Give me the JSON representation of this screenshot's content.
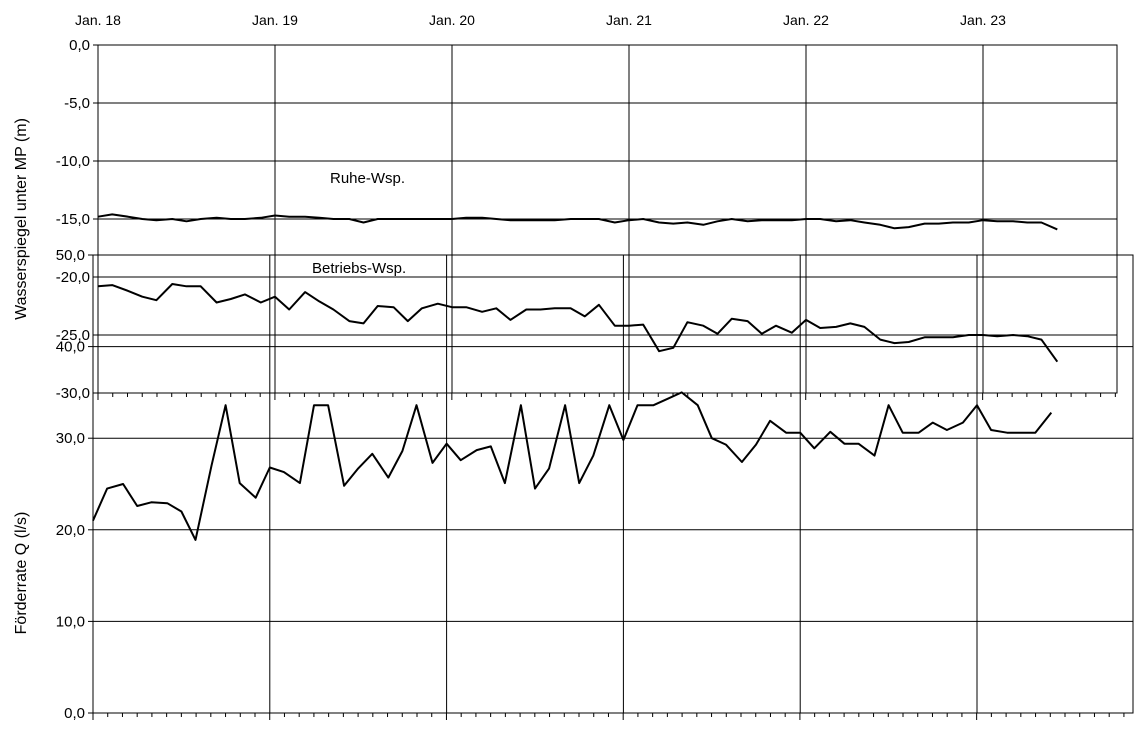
{
  "chart_data": [
    {
      "type": "line",
      "xlabel": "",
      "ylabel": "Wasserspiegel unter MP (m)",
      "x_tick_labels": [
        "Jan. 18",
        "Jan. 19",
        "Jan. 20",
        "Jan. 21",
        "Jan. 22",
        "Jan. 23"
      ],
      "ylim": [
        -30,
        0
      ],
      "y_tick_labels": [
        "0,0",
        "-5,0",
        "-10,0",
        "-15,0",
        "-20,0",
        "-25,0",
        "-30,0"
      ],
      "grid": true,
      "annotations": [
        "Ruhe-Wsp.",
        "Betriebs-Wsp."
      ],
      "series": [
        {
          "label": "Ruhe-Wsp.",
          "x": [
            0.0,
            0.08,
            0.17,
            0.25,
            0.33,
            0.42,
            0.5,
            0.58,
            0.67,
            0.75,
            0.83,
            0.92,
            1.0,
            1.08,
            1.17,
            1.25,
            1.33,
            1.42,
            1.5,
            1.58,
            1.67,
            1.75,
            1.83,
            1.92,
            2.0,
            2.08,
            2.17,
            2.25,
            2.33,
            2.42,
            2.5,
            2.58,
            2.67,
            2.75,
            2.83,
            2.92,
            3.0,
            3.08,
            3.17,
            3.25,
            3.33,
            3.42,
            3.5,
            3.58,
            3.67,
            3.75,
            3.83,
            3.92,
            4.0,
            4.08,
            4.17,
            4.25,
            4.33,
            4.42,
            4.5,
            4.58,
            4.67,
            4.75,
            4.83,
            4.92,
            5.0,
            5.08,
            5.17,
            5.25,
            5.33,
            5.42
          ],
          "values": [
            -14.8,
            -14.6,
            -14.8,
            -15.0,
            -15.1,
            -15.0,
            -15.2,
            -15.0,
            -14.9,
            -15.0,
            -15.0,
            -14.9,
            -14.7,
            -14.8,
            -14.8,
            -14.9,
            -15.0,
            -15.0,
            -15.3,
            -15.0,
            -15.0,
            -15.0,
            -15.0,
            -15.0,
            -15.0,
            -14.9,
            -14.9,
            -15.0,
            -15.1,
            -15.1,
            -15.1,
            -15.1,
            -15.0,
            -15.0,
            -15.0,
            -15.3,
            -15.1,
            -15.0,
            -15.3,
            -15.4,
            -15.3,
            -15.5,
            -15.2,
            -15.0,
            -15.2,
            -15.1,
            -15.1,
            -15.1,
            -15.0,
            -15.0,
            -15.2,
            -15.1,
            -15.3,
            -15.5,
            -15.8,
            -15.7,
            -15.4,
            -15.4,
            -15.3,
            -15.3,
            -15.1,
            -15.2,
            -15.2,
            -15.3,
            -15.3,
            -15.9
          ]
        },
        {
          "label": "Betriebs-Wsp.",
          "x": [
            0.0,
            0.08,
            0.17,
            0.25,
            0.33,
            0.42,
            0.5,
            0.58,
            0.67,
            0.75,
            0.83,
            0.92,
            1.0,
            1.08,
            1.17,
            1.25,
            1.33,
            1.42,
            1.5,
            1.58,
            1.67,
            1.75,
            1.83,
            1.92,
            2.0,
            2.08,
            2.17,
            2.25,
            2.33,
            2.42,
            2.5,
            2.58,
            2.67,
            2.75,
            2.83,
            2.92,
            3.0,
            3.08,
            3.17,
            3.25,
            3.33,
            3.42,
            3.5,
            3.58,
            3.67,
            3.75,
            3.83,
            3.92,
            4.0,
            4.08,
            4.17,
            4.25,
            4.33,
            4.42,
            4.5,
            4.58,
            4.67,
            4.75,
            4.83,
            4.92,
            5.0,
            5.08,
            5.17,
            5.25,
            5.33,
            5.42
          ],
          "values": [
            -20.8,
            -20.7,
            -21.2,
            -21.7,
            -22.0,
            -20.6,
            -20.8,
            -20.8,
            -22.2,
            -21.9,
            -21.5,
            -22.2,
            -21.7,
            -22.8,
            -21.3,
            -22.1,
            -22.8,
            -23.8,
            -24.0,
            -22.5,
            -22.6,
            -23.8,
            -22.7,
            -22.3,
            -22.6,
            -22.6,
            -23.0,
            -22.7,
            -23.7,
            -22.8,
            -22.8,
            -22.7,
            -22.7,
            -23.4,
            -22.4,
            -24.2,
            -24.2,
            -24.1,
            -26.4,
            -26.1,
            -23.9,
            -24.2,
            -24.9,
            -23.6,
            -23.8,
            -24.9,
            -24.2,
            -24.8,
            -23.7,
            -24.4,
            -24.3,
            -24.0,
            -24.3,
            -25.4,
            -25.7,
            -25.6,
            -25.2,
            -25.2,
            -25.2,
            -25.0,
            -25.0,
            -25.1,
            -25.0,
            -25.1,
            -25.4,
            -27.3
          ]
        }
      ]
    },
    {
      "type": "line",
      "xlabel": "",
      "ylabel": "Förderrate Q (l/s)",
      "x_tick_labels": [
        "Jan. 18",
        "Jan. 19",
        "Jan. 20",
        "Jan. 21",
        "Jan. 22",
        "Jan. 23"
      ],
      "ylim": [
        0,
        50
      ],
      "y_tick_labels": [
        "50,0",
        "40,0",
        "30,0",
        "20,0",
        "10,0",
        "0,0"
      ],
      "grid": true,
      "series": [
        {
          "x": [
            0.0,
            0.08,
            0.17,
            0.25,
            0.33,
            0.42,
            0.5,
            0.58,
            0.67,
            0.75,
            0.83,
            0.92,
            1.0,
            1.08,
            1.17,
            1.25,
            1.33,
            1.42,
            1.5,
            1.58,
            1.67,
            1.75,
            1.83,
            1.92,
            2.0,
            2.08,
            2.17,
            2.25,
            2.33,
            2.42,
            2.5,
            2.58,
            2.67,
            2.75,
            2.83,
            2.92,
            3.0,
            3.08,
            3.17,
            3.25,
            3.33,
            3.42,
            3.5,
            3.58,
            3.67,
            3.75,
            3.83,
            3.92,
            4.0,
            4.08,
            4.17,
            4.25,
            4.33,
            4.42,
            4.5,
            4.58,
            4.67,
            4.75,
            4.83,
            4.92,
            5.0,
            5.08,
            5.17,
            5.25,
            5.33,
            5.42
          ],
          "values": [
            21.0,
            24.5,
            25.0,
            22.6,
            23.0,
            22.9,
            22.0,
            18.9,
            27.0,
            33.6,
            25.1,
            23.5,
            26.8,
            26.3,
            25.1,
            33.6,
            33.6,
            24.8,
            26.7,
            28.3,
            25.7,
            28.6,
            33.6,
            27.3,
            29.4,
            27.6,
            28.7,
            29.1,
            25.1,
            33.6,
            24.5,
            26.7,
            33.6,
            25.1,
            28.1,
            33.6,
            29.8,
            33.6,
            33.6,
            34.3,
            35.0,
            33.6,
            30.0,
            29.3,
            27.4,
            29.3,
            31.9,
            30.6,
            30.6,
            28.9,
            30.7,
            29.4,
            29.4,
            28.1,
            33.6,
            30.6,
            30.6,
            31.7,
            30.9,
            31.7,
            33.6,
            30.9,
            30.6,
            30.6,
            30.6,
            32.8
          ]
        }
      ]
    }
  ]
}
